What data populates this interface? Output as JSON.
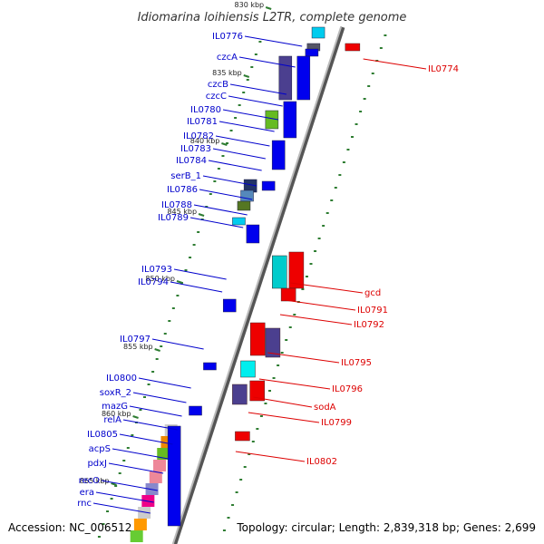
{
  "title": "Idiomarina loihiensis L2TR, complete genome",
  "footer": {
    "accession": "Accession: NC_006512",
    "topology": "Topology: circular; Length: 2,839,318 bp; Genes: 2,699"
  },
  "colors": {
    "forward_label": "#0000cc",
    "reverse_label": "#dd0000",
    "forward_gene": "#0000ee",
    "reverse_gene": "#ee0000",
    "backbone": "#888888",
    "kbp_tick": "#2e7d32",
    "gc_dots": "#2e7d32"
  },
  "kbp_ticks": [
    "830 kbp",
    "835 kbp",
    "840 kbp",
    "845 kbp",
    "850 kbp",
    "855 kbp",
    "860 kbp",
    "865 kbp"
  ],
  "forward_labels": [
    "IL0776",
    "czcA",
    "czcB",
    "czcC",
    "IL0780",
    "IL0781",
    "IL0782",
    "IL0783",
    "IL0784",
    "serB_1",
    "IL0786",
    "IL0788",
    "IL0789",
    "IL0793",
    "IL0794",
    "IL0797",
    "IL0800",
    "soxR_2",
    "mazG",
    "relA",
    "IL0805",
    "acpS",
    "pdxJ",
    "recO",
    "era",
    "rnc"
  ],
  "reverse_labels": [
    "IL0774",
    "gcd",
    "IL0791",
    "IL0792",
    "IL0795",
    "IL0796",
    "sodA",
    "IL0799",
    "IL0802"
  ]
}
